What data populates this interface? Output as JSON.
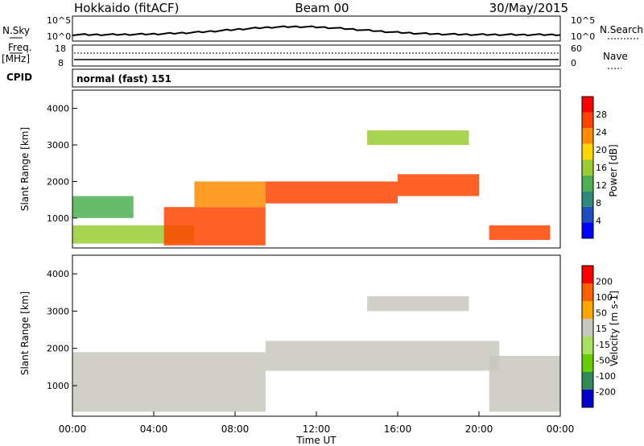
{
  "header": {
    "radar": "Hokkaido (fitACF)",
    "beam": "Beam 00",
    "date": "30/May/2015"
  },
  "noise_panel": {
    "left_label": "N.Sky",
    "right_label": "N.Search",
    "left_ticks": [
      "10^5",
      "10^0"
    ],
    "right_ticks": [
      "10^5",
      "10^0"
    ]
  },
  "freq_panel": {
    "left_label": "Freq.",
    "left_unit": "[MHz]",
    "right_label": "Nave",
    "left_ticks": [
      "18",
      "8"
    ],
    "right_ticks": [
      "60",
      "0"
    ]
  },
  "cpid": {
    "label": "CPID",
    "mode": "normal (fast) 151"
  },
  "time_axis": {
    "label": "Time UT",
    "ticks": [
      "00:00",
      "04:00",
      "08:00",
      "12:00",
      "16:00",
      "20:00",
      "00:00"
    ]
  },
  "chart_data": [
    {
      "type": "heatmap",
      "quantity": "Power",
      "ylabel": "Slant Range [km]",
      "yticks": [
        "4000",
        "3000",
        "2000",
        "1000"
      ],
      "ylim": [
        180,
        4500
      ],
      "xlim_hours": [
        0,
        24
      ],
      "colorbar": {
        "label": "Power [dB]",
        "ticks": [
          "28",
          "24",
          "20",
          "16",
          "12",
          "8",
          "4"
        ],
        "colors": [
          "#0000ff",
          "#1f4fbf",
          "#2e8b7a",
          "#4caf50",
          "#9acd32",
          "#ffd700",
          "#ff8c00",
          "#ff4500",
          "#ff0000"
        ]
      },
      "bands": [
        {
          "t0": 0.0,
          "t1": 6.0,
          "r0": 300,
          "r1": 800,
          "value": 16
        },
        {
          "t0": 4.5,
          "t1": 9.5,
          "r0": 250,
          "r1": 1300,
          "value": 28
        },
        {
          "t0": 6.0,
          "t1": 9.5,
          "r0": 1300,
          "r1": 2000,
          "value": 24
        },
        {
          "t0": 9.5,
          "t1": 16.0,
          "r0": 1400,
          "r1": 2000,
          "value": 26
        },
        {
          "t0": 16.0,
          "t1": 20.0,
          "r0": 1600,
          "r1": 2200,
          "value": 27
        },
        {
          "t0": 14.5,
          "t1": 19.5,
          "r0": 3000,
          "r1": 3400,
          "value": 14
        },
        {
          "t0": 20.5,
          "t1": 23.5,
          "r0": 400,
          "r1": 800,
          "value": 26
        },
        {
          "t0": 0.0,
          "t1": 3.0,
          "r0": 1000,
          "r1": 1600,
          "value": 12
        }
      ]
    },
    {
      "type": "heatmap",
      "quantity": "Velocity",
      "ylabel": "Slant Range [km]",
      "yticks": [
        "4000",
        "3000",
        "2000",
        "1000"
      ],
      "ylim": [
        180,
        4500
      ],
      "xlim_hours": [
        0,
        24
      ],
      "colorbar": {
        "label": "Velocity [m s-1]",
        "ticks": [
          "200",
          "100",
          "50",
          "15",
          "-15",
          "-50",
          "-100",
          "-200"
        ],
        "colors": [
          "#0000cd",
          "#2e8b57",
          "#66cd00",
          "#a8e060",
          "#c8c8c0",
          "#ffa500",
          "#ff6000",
          "#ff0000"
        ]
      },
      "bands": [
        {
          "t0": 0.0,
          "t1": 9.5,
          "r0": 300,
          "r1": 1900,
          "value": 0
        },
        {
          "t0": 9.5,
          "t1": 21.0,
          "r0": 1400,
          "r1": 2200,
          "value": 0
        },
        {
          "t0": 14.5,
          "t1": 19.5,
          "r0": 3000,
          "r1": 3400,
          "value": 0
        },
        {
          "t0": 20.5,
          "t1": 24.0,
          "r0": 300,
          "r1": 1800,
          "value": 0
        }
      ]
    }
  ]
}
